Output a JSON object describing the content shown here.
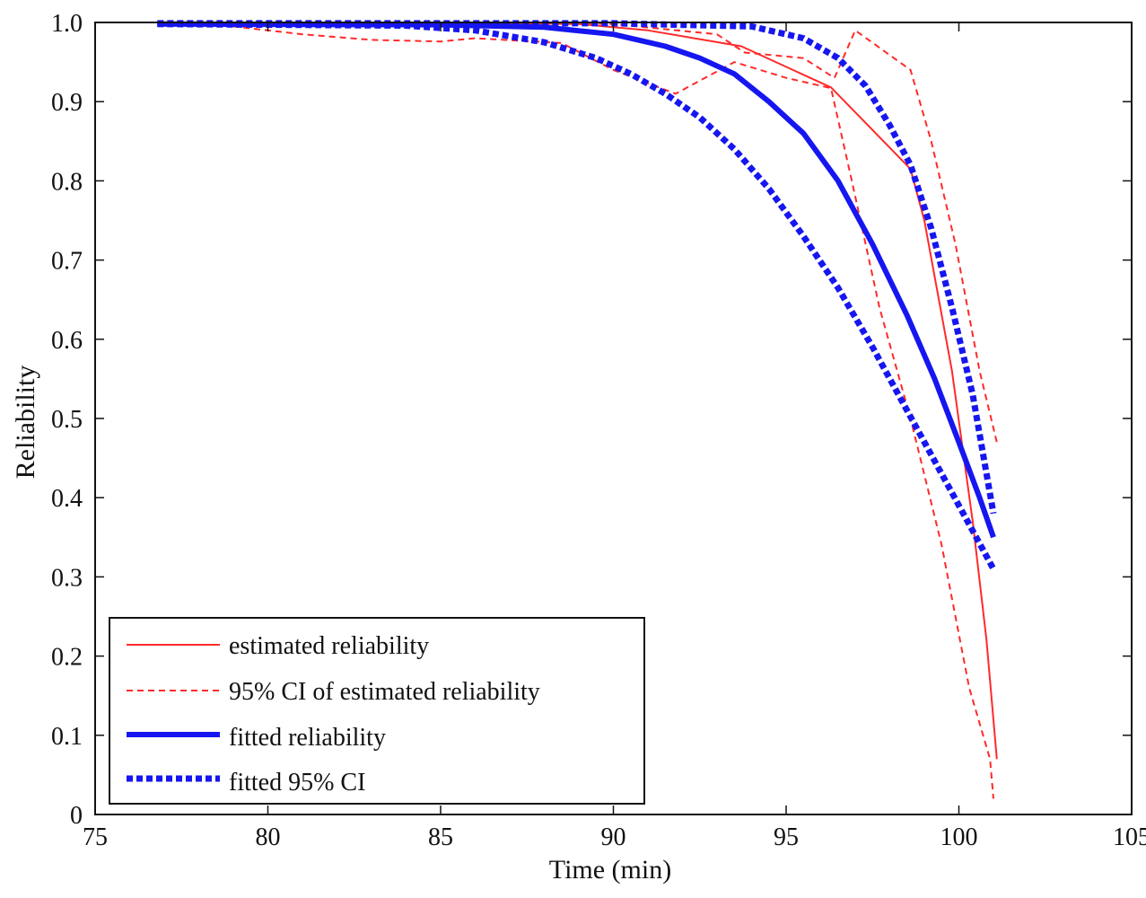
{
  "chart_data": {
    "type": "line",
    "title": "",
    "xlabel": "Time (min)",
    "ylabel": "Reliability",
    "xlim": [
      75,
      105
    ],
    "ylim": [
      0,
      1.0
    ],
    "x_ticks": [
      75,
      80,
      85,
      90,
      95,
      100,
      105
    ],
    "x_tick_labels": [
      "75",
      "80",
      "85",
      "90",
      "95",
      "100",
      "105"
    ],
    "y_ticks": [
      0,
      0.1,
      0.2,
      0.3,
      0.4,
      0.5,
      0.6,
      0.7,
      0.8,
      0.9,
      1.0
    ],
    "y_tick_labels": [
      "0",
      "0.1",
      "0.2",
      "0.3",
      "0.4",
      "0.5",
      "0.6",
      "0.7",
      "0.8",
      "0.9",
      "1.0"
    ],
    "grid": false,
    "legend_position": "bottom-left",
    "series": [
      {
        "name": "estimated reliability",
        "legend_label": "estimated reliability",
        "color": "#ff2a2a",
        "style": "solid-thin",
        "points": [
          [
            76.8,
            1.0
          ],
          [
            85.0,
            1.0
          ],
          [
            89.0,
            0.998
          ],
          [
            91.0,
            0.99
          ],
          [
            93.7,
            0.97
          ],
          [
            96.3,
            0.918
          ],
          [
            98.6,
            0.815
          ],
          [
            99.0,
            0.75
          ],
          [
            99.8,
            0.56
          ],
          [
            100.4,
            0.37
          ],
          [
            100.8,
            0.22
          ],
          [
            101.1,
            0.07
          ]
        ]
      },
      {
        "name": "95% CI lower of estimated reliability",
        "legend_label": "95% CI of estimated reliability",
        "color": "#ff2a2a",
        "style": "dashed-thin",
        "points": [
          [
            76.8,
            1.0
          ],
          [
            79.0,
            0.995
          ],
          [
            81.0,
            0.985
          ],
          [
            83.0,
            0.978
          ],
          [
            85.0,
            0.976
          ],
          [
            86.0,
            0.98
          ],
          [
            88.5,
            0.974
          ],
          [
            90.0,
            0.94
          ],
          [
            91.8,
            0.91
          ],
          [
            93.5,
            0.95
          ],
          [
            95.0,
            0.93
          ],
          [
            96.3,
            0.917
          ],
          [
            96.9,
            0.8
          ],
          [
            97.7,
            0.64
          ],
          [
            98.6,
            0.5
          ],
          [
            99.5,
            0.34
          ],
          [
            100.3,
            0.16
          ],
          [
            100.9,
            0.07
          ],
          [
            101.0,
            0.02
          ]
        ]
      },
      {
        "name": "95% CI upper of estimated reliability",
        "legend_label": "",
        "color": "#ff2a2a",
        "style": "dashed-thin",
        "points": [
          [
            76.8,
            1.0
          ],
          [
            87.0,
            1.0
          ],
          [
            90.0,
            0.998
          ],
          [
            93.0,
            0.985
          ],
          [
            93.8,
            0.962
          ],
          [
            95.5,
            0.955
          ],
          [
            96.4,
            0.93
          ],
          [
            97.0,
            0.99
          ],
          [
            98.6,
            0.94
          ],
          [
            99.2,
            0.85
          ],
          [
            99.9,
            0.72
          ],
          [
            100.6,
            0.56
          ],
          [
            101.1,
            0.47
          ]
        ]
      },
      {
        "name": "fitted reliability",
        "legend_label": "fitted reliability",
        "color": "#1616f0",
        "style": "solid-thick",
        "points": [
          [
            76.8,
            0.998
          ],
          [
            85.0,
            0.997
          ],
          [
            88.0,
            0.994
          ],
          [
            90.0,
            0.985
          ],
          [
            91.5,
            0.97
          ],
          [
            92.5,
            0.955
          ],
          [
            93.5,
            0.935
          ],
          [
            94.5,
            0.9
          ],
          [
            95.5,
            0.86
          ],
          [
            96.5,
            0.8
          ],
          [
            97.5,
            0.72
          ],
          [
            98.5,
            0.63
          ],
          [
            99.3,
            0.55
          ],
          [
            100.0,
            0.47
          ],
          [
            100.6,
            0.4
          ],
          [
            101.0,
            0.35
          ]
        ]
      },
      {
        "name": "fitted 95% CI lower",
        "legend_label": "fitted 95% CI",
        "color": "#1616f0",
        "style": "dotted-thick",
        "points": [
          [
            76.8,
            0.998
          ],
          [
            84.0,
            0.996
          ],
          [
            86.0,
            0.99
          ],
          [
            88.0,
            0.975
          ],
          [
            89.5,
            0.955
          ],
          [
            90.5,
            0.935
          ],
          [
            91.5,
            0.91
          ],
          [
            92.5,
            0.88
          ],
          [
            93.5,
            0.84
          ],
          [
            94.5,
            0.79
          ],
          [
            95.5,
            0.73
          ],
          [
            96.5,
            0.665
          ],
          [
            97.5,
            0.59
          ],
          [
            98.5,
            0.51
          ],
          [
            99.5,
            0.43
          ],
          [
            100.5,
            0.35
          ],
          [
            101.0,
            0.31
          ]
        ]
      },
      {
        "name": "fitted 95% CI upper",
        "legend_label": "",
        "color": "#1616f0",
        "style": "dotted-thick",
        "points": [
          [
            76.8,
            0.999
          ],
          [
            90.0,
            0.999
          ],
          [
            94.0,
            0.995
          ],
          [
            95.5,
            0.98
          ],
          [
            96.5,
            0.955
          ],
          [
            97.3,
            0.92
          ],
          [
            98.0,
            0.87
          ],
          [
            98.6,
            0.82
          ],
          [
            99.2,
            0.74
          ],
          [
            99.8,
            0.64
          ],
          [
            100.4,
            0.53
          ],
          [
            101.0,
            0.38
          ]
        ]
      }
    ]
  },
  "legend": {
    "items": [
      {
        "label": "estimated reliability",
        "style": "solid-thin",
        "color": "#ff2a2a"
      },
      {
        "label": "95% CI of estimated reliability",
        "style": "dashed-thin",
        "color": "#ff2a2a"
      },
      {
        "label": "fitted reliability",
        "style": "solid-thick",
        "color": "#1616f0"
      },
      {
        "label": "fitted 95% CI",
        "style": "dotted-thick",
        "color": "#1616f0"
      }
    ]
  }
}
